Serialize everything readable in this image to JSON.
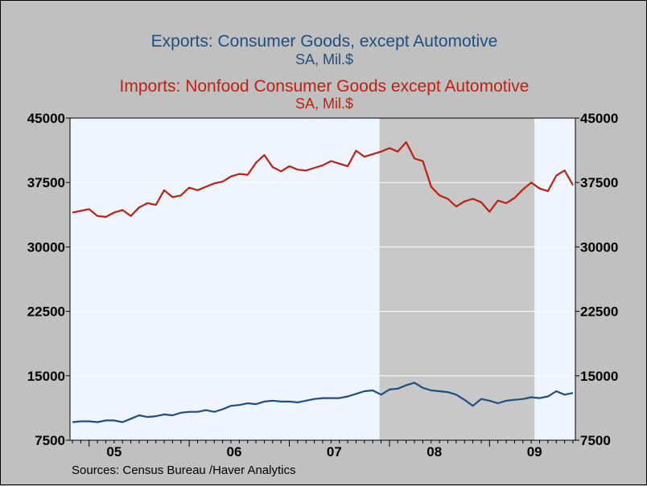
{
  "colors": {
    "exports": "#1f4e82",
    "imports": "#c0200f",
    "plot_background": "#eef5ff",
    "recession_shading": "#c8c8c8",
    "page_background": "#c0c0c0"
  },
  "chart_data": {
    "type": "line",
    "source": "Sources:  Census Bureau /Haver Analytics",
    "x_tick_labels": [
      "05",
      "06",
      "07",
      "08",
      "09"
    ],
    "x_range": [
      "2004-11",
      "2009-11"
    ],
    "y_ticks": [
      7500,
      15000,
      22500,
      30000,
      37500,
      45000
    ],
    "y_tick_labels": [
      "7500",
      "15000",
      "22500",
      "30000",
      "37500",
      "45000"
    ],
    "ylim": [
      7500,
      45000
    ],
    "grid": true,
    "dual_axis": true,
    "shaded_period": [
      "2007-12",
      "2009-06"
    ],
    "months": [
      "2004-11",
      "2004-12",
      "2005-01",
      "2005-02",
      "2005-03",
      "2005-04",
      "2005-05",
      "2005-06",
      "2005-07",
      "2005-08",
      "2005-09",
      "2005-10",
      "2005-11",
      "2005-12",
      "2006-01",
      "2006-02",
      "2006-03",
      "2006-04",
      "2006-05",
      "2006-06",
      "2006-07",
      "2006-08",
      "2006-09",
      "2006-10",
      "2006-11",
      "2006-12",
      "2007-01",
      "2007-02",
      "2007-03",
      "2007-04",
      "2007-05",
      "2007-06",
      "2007-07",
      "2007-08",
      "2007-09",
      "2007-10",
      "2007-11",
      "2007-12",
      "2008-01",
      "2008-02",
      "2008-03",
      "2008-04",
      "2008-05",
      "2008-06",
      "2008-07",
      "2008-08",
      "2008-09",
      "2008-10",
      "2008-11",
      "2008-12",
      "2009-01",
      "2009-02",
      "2009-03",
      "2009-04",
      "2009-05",
      "2009-06",
      "2009-07",
      "2009-08",
      "2009-09",
      "2009-10",
      "2009-11"
    ],
    "series": [
      {
        "title": "Exports: Consumer Goods, except Automotive",
        "unit": "SA, Mil.$",
        "color": "#1f4e82",
        "values": [
          9600,
          9700,
          9700,
          9600,
          9800,
          9800,
          9600,
          10000,
          10400,
          10200,
          10300,
          10500,
          10400,
          10700,
          10800,
          10800,
          11000,
          10800,
          11100,
          11500,
          11600,
          11800,
          11700,
          12000,
          12100,
          12000,
          12000,
          11900,
          12100,
          12300,
          12400,
          12400,
          12400,
          12600,
          12900,
          13200,
          13300,
          12800,
          13400,
          13500,
          13900,
          14200,
          13600,
          13300,
          13200,
          13100,
          12800,
          12200,
          11500,
          12300,
          12100,
          11800,
          12100,
          12200,
          12300,
          12500,
          12400,
          12600,
          13200,
          12800,
          13000
        ]
      },
      {
        "title": "Imports: Nonfood Consumer Goods except Automotive",
        "unit": "SA, Mil.$",
        "color": "#c0200f",
        "values": [
          34000,
          34200,
          34400,
          33600,
          33500,
          34000,
          34300,
          33600,
          34600,
          35100,
          34900,
          36600,
          35800,
          36000,
          36900,
          36600,
          37000,
          37400,
          37600,
          38200,
          38500,
          38400,
          39800,
          40700,
          39300,
          38800,
          39400,
          39000,
          38900,
          39200,
          39500,
          40000,
          39700,
          39400,
          41200,
          40500,
          40800,
          41100,
          41500,
          41100,
          42200,
          40300,
          40000,
          37000,
          36000,
          35600,
          34700,
          35300,
          35600,
          35200,
          34100,
          35400,
          35100,
          35700,
          36700,
          37500,
          36800,
          36500,
          38300,
          38900,
          37200
        ]
      }
    ]
  }
}
